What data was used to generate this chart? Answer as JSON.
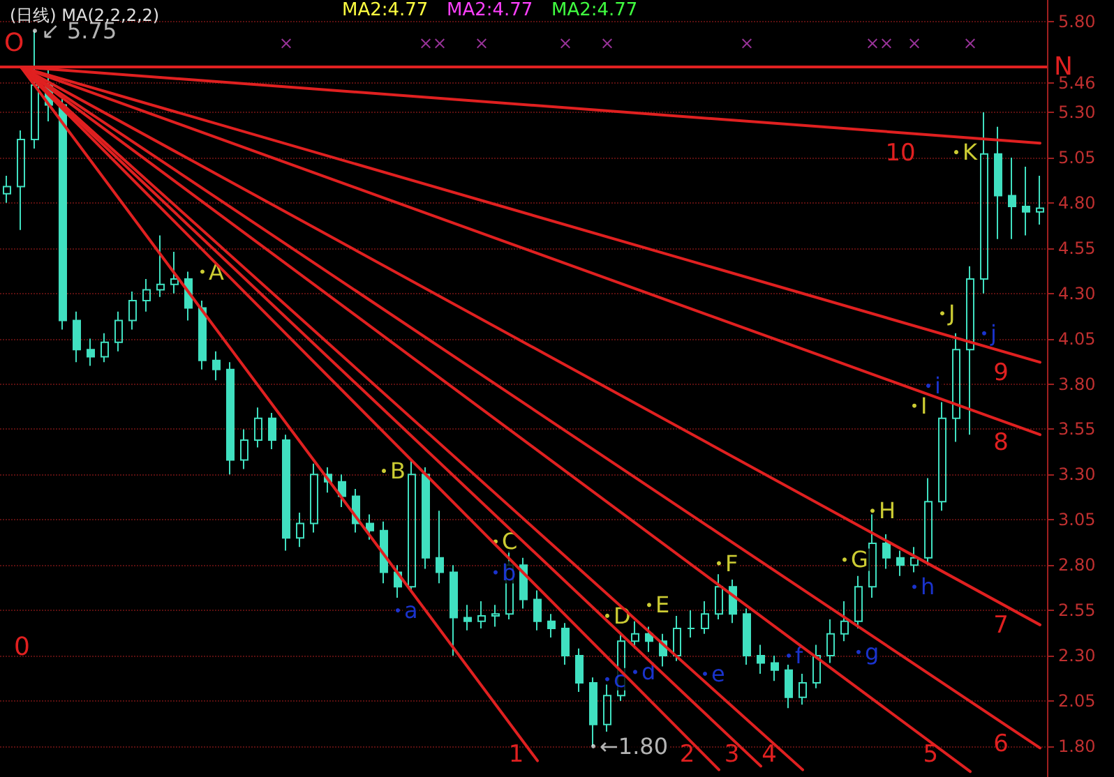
{
  "chart_data": {
    "type": "candlestick",
    "title": "(日线) MA(2,2,2,2)",
    "categories": [
      null,
      null,
      null,
      null,
      null,
      null,
      null,
      null,
      null,
      null,
      null,
      null,
      null,
      null,
      null,
      null,
      null,
      null,
      null,
      null,
      null,
      null,
      null,
      null,
      null,
      null,
      null,
      null,
      null,
      null,
      null,
      null,
      null,
      null,
      null,
      null,
      null,
      null,
      null,
      null,
      null,
      null,
      null,
      null,
      null,
      null,
      null,
      null,
      null,
      null,
      null,
      null,
      null,
      null,
      null,
      null,
      null,
      null,
      null,
      null,
      null,
      null,
      null,
      null,
      null,
      null,
      null,
      null,
      null,
      null,
      null,
      null,
      null,
      null,
      null
    ],
    "ylim": [
      1.63,
      5.92
    ],
    "yticks": [
      {
        "value": 1.8,
        "label": "1.80"
      },
      2.05,
      {
        "value": 2.3,
        "label": "2.30"
      },
      2.55,
      {
        "value": 2.8,
        "label": "2.80"
      },
      3.05,
      {
        "value": 3.3,
        "label": "3.30"
      },
      3.55,
      {
        "value": 3.8,
        "label": "3.80"
      },
      4.05,
      {
        "value": 4.3,
        "label": "4.30"
      },
      4.55,
      {
        "value": 4.8,
        "label": "4.80"
      },
      5.05,
      {
        "value": 5.3,
        "label": "5.30"
      },
      5.46,
      {
        "value": 5.8,
        "label": "5.80"
      }
    ],
    "tick_labels": "y",
    "grid": "y",
    "series": [
      {
        "type": "candlestick",
        "color": "#40e0c0",
        "ohlc": [
          [
            4.85,
            4.95,
            4.8,
            4.89
          ],
          [
            4.89,
            5.2,
            4.65,
            5.15
          ],
          [
            5.15,
            5.75,
            5.1,
            5.45
          ],
          [
            5.45,
            5.55,
            5.25,
            5.34
          ],
          [
            5.34,
            5.38,
            4.1,
            4.15
          ],
          [
            4.15,
            4.2,
            3.92,
            3.99
          ],
          [
            3.99,
            4.05,
            3.9,
            3.95
          ],
          [
            3.95,
            4.08,
            3.92,
            4.03
          ],
          [
            4.03,
            4.2,
            3.98,
            4.15
          ],
          [
            4.15,
            4.31,
            4.1,
            4.26
          ],
          [
            4.26,
            4.38,
            4.2,
            4.32
          ],
          [
            4.32,
            4.62,
            4.28,
            4.35
          ],
          [
            4.35,
            4.53,
            4.3,
            4.38
          ],
          [
            4.38,
            4.42,
            4.15,
            4.22
          ],
          [
            4.22,
            4.26,
            3.88,
            3.93
          ],
          [
            3.93,
            3.98,
            3.82,
            3.88
          ],
          [
            3.88,
            3.92,
            3.3,
            3.38
          ],
          [
            3.38,
            3.55,
            3.33,
            3.49
          ],
          [
            3.49,
            3.67,
            3.45,
            3.61
          ],
          [
            3.61,
            3.64,
            3.44,
            3.49
          ],
          [
            3.49,
            3.52,
            2.88,
            2.95
          ],
          [
            2.95,
            3.09,
            2.9,
            3.03
          ],
          [
            3.03,
            3.36,
            2.98,
            3.3
          ],
          [
            3.3,
            3.34,
            3.2,
            3.26
          ],
          [
            3.26,
            3.3,
            3.12,
            3.18
          ],
          [
            3.18,
            3.22,
            2.98,
            3.03
          ],
          [
            3.03,
            3.08,
            2.94,
            2.99
          ],
          [
            2.99,
            3.04,
            2.7,
            2.76
          ],
          [
            2.76,
            2.8,
            2.62,
            2.68
          ],
          [
            2.68,
            3.38,
            2.65,
            3.3
          ],
          [
            3.3,
            3.34,
            2.78,
            2.84
          ],
          [
            2.84,
            3.1,
            2.7,
            2.76
          ],
          [
            2.76,
            2.8,
            2.3,
            2.51
          ],
          [
            2.51,
            2.58,
            2.44,
            2.49
          ],
          [
            2.49,
            2.6,
            2.45,
            2.52
          ],
          [
            2.52,
            2.58,
            2.46,
            2.53
          ],
          [
            2.53,
            2.88,
            2.5,
            2.8
          ],
          [
            2.8,
            2.84,
            2.56,
            2.61
          ],
          [
            2.61,
            2.66,
            2.44,
            2.49
          ],
          [
            2.49,
            2.53,
            2.4,
            2.45
          ],
          [
            2.45,
            2.48,
            2.25,
            2.3
          ],
          [
            2.3,
            2.34,
            2.1,
            2.15
          ],
          [
            2.15,
            2.18,
            1.8,
            1.92
          ],
          [
            1.92,
            2.14,
            1.88,
            2.08
          ],
          [
            2.08,
            2.43,
            2.05,
            2.38
          ],
          [
            2.38,
            2.49,
            2.34,
            2.42
          ],
          [
            2.42,
            2.46,
            2.32,
            2.38
          ],
          [
            2.38,
            2.42,
            2.24,
            2.3
          ],
          [
            2.3,
            2.52,
            2.27,
            2.45
          ],
          [
            2.45,
            2.55,
            2.4,
            2.45
          ],
          [
            2.45,
            2.6,
            2.42,
            2.53
          ],
          [
            2.53,
            2.75,
            2.5,
            2.68
          ],
          [
            2.68,
            2.72,
            2.48,
            2.53
          ],
          [
            2.53,
            2.56,
            2.25,
            2.3
          ],
          [
            2.3,
            2.36,
            2.2,
            2.26
          ],
          [
            2.26,
            2.3,
            2.16,
            2.22
          ],
          [
            2.22,
            2.25,
            2.01,
            2.07
          ],
          [
            2.07,
            2.2,
            2.03,
            2.15
          ],
          [
            2.15,
            2.36,
            2.12,
            2.3
          ],
          [
            2.3,
            2.5,
            2.26,
            2.42
          ],
          [
            2.42,
            2.6,
            2.38,
            2.49
          ],
          [
            2.49,
            2.74,
            2.45,
            2.68
          ],
          [
            2.68,
            3.08,
            2.62,
            2.92
          ],
          [
            2.92,
            2.97,
            2.78,
            2.84
          ],
          [
            2.84,
            2.88,
            2.74,
            2.8
          ],
          [
            2.8,
            2.9,
            2.76,
            2.84
          ],
          [
            2.84,
            3.28,
            2.8,
            3.15
          ],
          [
            3.15,
            3.7,
            3.1,
            3.61
          ],
          [
            3.61,
            4.08,
            3.48,
            3.99
          ],
          [
            3.99,
            4.45,
            3.52,
            4.38
          ],
          [
            4.38,
            5.3,
            4.3,
            5.07
          ],
          [
            5.07,
            5.22,
            4.6,
            4.84
          ],
          [
            4.84,
            5.05,
            4.6,
            4.78
          ],
          [
            4.78,
            5.0,
            4.62,
            4.75
          ],
          [
            4.75,
            4.95,
            4.68,
            4.77
          ]
        ]
      },
      {
        "type": "line",
        "name": "1",
        "color": "#e02020",
        "values": [
          null,
          5.55,
          null,
          null,
          null,
          null,
          null,
          null,
          null,
          null,
          null,
          null,
          null,
          null,
          null,
          null,
          null,
          null,
          null,
          null,
          null,
          null,
          null,
          null,
          null,
          null,
          null,
          null,
          null,
          null,
          null,
          null,
          null,
          null,
          null,
          null,
          null,
          null,
          1.72,
          null,
          null,
          null,
          null,
          null,
          null,
          null,
          null,
          null,
          null,
          null,
          null,
          null,
          null,
          null,
          null,
          null,
          null,
          null,
          null,
          null,
          null,
          null,
          null,
          null,
          null,
          null,
          null,
          null,
          null,
          null,
          null,
          null,
          null,
          null,
          null
        ]
      },
      {
        "type": "line",
        "name": "2",
        "color": "#e02020",
        "values": [
          null,
          5.55,
          null,
          null,
          null,
          null,
          null,
          null,
          null,
          null,
          null,
          null,
          null,
          null,
          null,
          null,
          null,
          null,
          null,
          null,
          null,
          null,
          null,
          null,
          null,
          null,
          null,
          null,
          null,
          null,
          null,
          null,
          null,
          null,
          null,
          null,
          null,
          null,
          null,
          null,
          null,
          null,
          null,
          null,
          null,
          null,
          null,
          null,
          null,
          null,
          null,
          1.67,
          null,
          null,
          null,
          null,
          null,
          null,
          null,
          null,
          null,
          null,
          null,
          null,
          null,
          null,
          null,
          null,
          null,
          null,
          null,
          null,
          null,
          null,
          null
        ]
      },
      {
        "type": "line",
        "name": "3",
        "color": "#e02020",
        "values": [
          null,
          5.55,
          null,
          null,
          null,
          null,
          null,
          null,
          null,
          null,
          null,
          null,
          null,
          null,
          null,
          null,
          null,
          null,
          null,
          null,
          null,
          null,
          null,
          null,
          null,
          null,
          null,
          null,
          null,
          null,
          null,
          null,
          null,
          null,
          null,
          null,
          null,
          null,
          null,
          null,
          null,
          null,
          null,
          null,
          null,
          null,
          null,
          null,
          null,
          null,
          null,
          null,
          null,
          null,
          1.69,
          null,
          null,
          null,
          null,
          null,
          null,
          null,
          null,
          null,
          null,
          null,
          null,
          null,
          null,
          null,
          null,
          null,
          null,
          null,
          null
        ]
      },
      {
        "type": "line",
        "name": "4",
        "color": "#e02020",
        "values": [
          null,
          5.55,
          null,
          null,
          null,
          null,
          null,
          null,
          null,
          null,
          null,
          null,
          null,
          null,
          null,
          null,
          null,
          null,
          null,
          null,
          null,
          null,
          null,
          null,
          null,
          null,
          null,
          null,
          null,
          null,
          null,
          null,
          null,
          null,
          null,
          null,
          null,
          null,
          null,
          null,
          null,
          null,
          null,
          null,
          null,
          null,
          null,
          null,
          null,
          null,
          null,
          null,
          null,
          null,
          null,
          null,
          null,
          1.67,
          null,
          null,
          null,
          null,
          null,
          null,
          null,
          null,
          null,
          null,
          null,
          null,
          null,
          null,
          null,
          null,
          null
        ]
      },
      {
        "type": "line",
        "name": "5",
        "color": "#e02020",
        "values": [
          null,
          5.55,
          null,
          null,
          null,
          null,
          null,
          null,
          null,
          null,
          null,
          null,
          null,
          null,
          null,
          null,
          null,
          null,
          null,
          null,
          null,
          null,
          null,
          null,
          null,
          null,
          null,
          null,
          null,
          null,
          null,
          null,
          null,
          null,
          null,
          null,
          null,
          null,
          null,
          null,
          null,
          null,
          null,
          null,
          null,
          null,
          null,
          null,
          null,
          null,
          null,
          null,
          null,
          null,
          null,
          null,
          null,
          null,
          null,
          null,
          null,
          null,
          null,
          null,
          null,
          null,
          null,
          null,
          null,
          1.66,
          null,
          null,
          null,
          null,
          null
        ]
      },
      {
        "type": "line",
        "name": "6",
        "color": "#e02020",
        "values": [
          null,
          5.55,
          null,
          null,
          null,
          null,
          null,
          null,
          null,
          null,
          null,
          null,
          null,
          null,
          null,
          null,
          null,
          null,
          null,
          null,
          null,
          null,
          null,
          null,
          null,
          null,
          null,
          null,
          null,
          null,
          null,
          null,
          null,
          null,
          null,
          null,
          null,
          null,
          null,
          null,
          null,
          null,
          null,
          null,
          null,
          null,
          null,
          null,
          null,
          null,
          null,
          null,
          null,
          null,
          null,
          null,
          null,
          null,
          null,
          null,
          null,
          null,
          null,
          null,
          null,
          null,
          null,
          null,
          null,
          null,
          null,
          null,
          null,
          null,
          1.79
        ]
      },
      {
        "type": "line",
        "name": "7",
        "color": "#e02020",
        "values": [
          null,
          5.55,
          null,
          null,
          null,
          null,
          null,
          null,
          null,
          null,
          null,
          null,
          null,
          null,
          null,
          null,
          null,
          null,
          null,
          null,
          null,
          null,
          null,
          null,
          null,
          null,
          null,
          null,
          null,
          null,
          null,
          null,
          null,
          null,
          null,
          null,
          null,
          null,
          null,
          null,
          null,
          null,
          null,
          null,
          null,
          null,
          null,
          null,
          null,
          null,
          null,
          null,
          null,
          null,
          null,
          null,
          null,
          null,
          null,
          null,
          null,
          null,
          null,
          null,
          null,
          null,
          null,
          null,
          null,
          null,
          null,
          null,
          null,
          null,
          2.47
        ]
      },
      {
        "type": "line",
        "name": "8",
        "color": "#e02020",
        "values": [
          null,
          5.55,
          null,
          null,
          null,
          null,
          null,
          null,
          null,
          null,
          null,
          null,
          null,
          null,
          null,
          null,
          null,
          null,
          null,
          null,
          null,
          null,
          null,
          null,
          null,
          null,
          null,
          null,
          null,
          null,
          null,
          null,
          null,
          null,
          null,
          null,
          null,
          null,
          null,
          null,
          null,
          null,
          null,
          null,
          null,
          null,
          null,
          null,
          null,
          null,
          null,
          null,
          null,
          null,
          null,
          null,
          null,
          null,
          null,
          null,
          null,
          null,
          null,
          null,
          null,
          null,
          null,
          null,
          null,
          null,
          null,
          null,
          null,
          null,
          3.52
        ]
      },
      {
        "type": "line",
        "name": "9",
        "color": "#e02020",
        "values": [
          null,
          5.55,
          null,
          null,
          null,
          null,
          null,
          null,
          null,
          null,
          null,
          null,
          null,
          null,
          null,
          null,
          null,
          null,
          null,
          null,
          null,
          null,
          null,
          null,
          null,
          null,
          null,
          null,
          null,
          null,
          null,
          null,
          null,
          null,
          null,
          null,
          null,
          null,
          null,
          null,
          null,
          null,
          null,
          null,
          null,
          null,
          null,
          null,
          null,
          null,
          null,
          null,
          null,
          null,
          null,
          null,
          null,
          null,
          null,
          null,
          null,
          null,
          null,
          null,
          null,
          null,
          null,
          null,
          null,
          null,
          null,
          null,
          null,
          null,
          3.92
        ]
      },
      {
        "type": "line",
        "name": "10",
        "color": "#e02020",
        "values": [
          null,
          5.55,
          null,
          null,
          null,
          null,
          null,
          null,
          null,
          null,
          null,
          null,
          null,
          null,
          null,
          null,
          null,
          null,
          null,
          null,
          null,
          null,
          null,
          null,
          null,
          null,
          null,
          null,
          null,
          null,
          null,
          null,
          null,
          null,
          null,
          null,
          null,
          null,
          null,
          null,
          null,
          null,
          null,
          null,
          null,
          null,
          null,
          null,
          null,
          null,
          null,
          null,
          null,
          null,
          null,
          null,
          null,
          null,
          null,
          null,
          null,
          null,
          null,
          null,
          null,
          null,
          null,
          null,
          null,
          null,
          null,
          null,
          null,
          null,
          5.13
        ]
      },
      {
        "type": "scatter",
        "color": "#c040c0",
        "marker": "cross",
        "values": [
          null,
          null,
          null,
          null,
          null,
          null,
          null,
          null,
          null,
          null,
          null,
          null,
          null,
          null,
          null,
          null,
          null,
          null,
          null,
          null,
          5.68,
          null,
          null,
          null,
          null,
          null,
          null,
          null,
          null,
          null,
          5.68,
          5.68,
          null,
          null,
          5.68,
          null,
          null,
          null,
          null,
          null,
          5.68,
          null,
          null,
          5.68,
          null,
          null,
          null,
          null,
          null,
          null,
          null,
          null,
          null,
          5.68,
          null,
          null,
          null,
          null,
          null,
          null,
          null,
          null,
          5.68,
          5.68,
          null,
          5.68,
          null,
          null,
          null,
          5.68,
          null,
          null,
          null,
          null,
          null
        ]
      },
      {
        "type": "scatter",
        "color": "#ffff40",
        "marker": "circle",
        "values": [
          null,
          null,
          null,
          null,
          null,
          null,
          null,
          null,
          null,
          null,
          null,
          null,
          null,
          null,
          4.42,
          null,
          null,
          null,
          null,
          null,
          null,
          null,
          null,
          null,
          null,
          null,
          null,
          3.32,
          null,
          null,
          null,
          null,
          null,
          null,
          null,
          2.93,
          null,
          null,
          null,
          null,
          null,
          null,
          null,
          2.52,
          null,
          null,
          2.58,
          null,
          null,
          null,
          null,
          2.81,
          null,
          null,
          null,
          null,
          null,
          null,
          null,
          null,
          2.83,
          null,
          3.1,
          null,
          null,
          3.68,
          null,
          4.19,
          5.08,
          null,
          null,
          null,
          null,
          null,
          null
        ],
        "value_labels": [
          null,
          null,
          null,
          null,
          null,
          null,
          null,
          null,
          null,
          null,
          null,
          null,
          null,
          null,
          "A",
          null,
          null,
          null,
          null,
          null,
          null,
          null,
          null,
          null,
          null,
          null,
          null,
          "B",
          null,
          null,
          null,
          null,
          null,
          null,
          null,
          "C",
          null,
          null,
          null,
          null,
          null,
          null,
          null,
          "D",
          null,
          null,
          "E",
          null,
          null,
          null,
          null,
          "F",
          null,
          null,
          null,
          null,
          null,
          null,
          null,
          null,
          "G",
          null,
          "H",
          null,
          null,
          "I",
          null,
          "J",
          "K",
          null,
          null,
          null,
          null,
          null,
          null
        ]
      },
      {
        "type": "scatter",
        "color": "#2040ff",
        "marker": "circle",
        "values": [
          null,
          null,
          null,
          null,
          null,
          null,
          null,
          null,
          null,
          null,
          null,
          null,
          null,
          null,
          null,
          null,
          null,
          null,
          null,
          null,
          null,
          null,
          null,
          null,
          null,
          null,
          null,
          null,
          2.55,
          null,
          null,
          null,
          null,
          null,
          null,
          2.76,
          null,
          null,
          null,
          null,
          null,
          null,
          null,
          2.17,
          null,
          2.21,
          null,
          null,
          null,
          null,
          2.2,
          null,
          null,
          null,
          null,
          null,
          2.3,
          null,
          null,
          null,
          null,
          2.32,
          null,
          null,
          null,
          2.68,
          3.79,
          null,
          null,
          null,
          4.08,
          null,
          null,
          null,
          null
        ],
        "value_labels": [
          null,
          null,
          null,
          null,
          null,
          null,
          null,
          null,
          null,
          null,
          null,
          null,
          null,
          null,
          null,
          null,
          null,
          null,
          null,
          null,
          null,
          null,
          null,
          null,
          null,
          null,
          null,
          null,
          "a",
          null,
          null,
          null,
          null,
          null,
          null,
          "b",
          null,
          null,
          null,
          null,
          null,
          null,
          null,
          "c",
          null,
          "d",
          null,
          null,
          null,
          null,
          "e",
          null,
          null,
          null,
          null,
          null,
          "f",
          null,
          null,
          null,
          null,
          "g",
          null,
          null,
          null,
          "h",
          "i",
          null,
          null,
          null,
          "j",
          null,
          null,
          null,
          null
        ]
      },
      {
        "type": "scatter",
        "color": "#e0e0e0",
        "marker": "circle",
        "values": [
          null,
          null,
          5.75,
          null,
          null,
          null,
          null,
          null,
          null,
          null,
          null,
          null,
          null,
          null,
          null,
          null,
          null,
          null,
          null,
          null,
          null,
          null,
          null,
          null,
          null,
          null,
          null,
          null,
          null,
          null,
          null,
          null,
          null,
          null,
          null,
          null,
          null,
          null,
          null,
          null,
          null,
          null,
          1.8,
          null,
          null,
          null,
          null,
          null,
          null,
          null,
          null,
          null,
          null,
          null,
          null,
          null,
          null,
          null,
          null,
          null,
          null,
          null,
          null,
          null,
          null,
          null,
          null,
          null,
          null,
          null,
          null,
          null,
          null,
          null,
          null
        ],
        "value_labels": [
          null,
          null,
          "↙ 5.75",
          null,
          null,
          null,
          null,
          null,
          null,
          null,
          null,
          null,
          null,
          null,
          null,
          null,
          null,
          null,
          null,
          null,
          null,
          null,
          null,
          null,
          null,
          null,
          null,
          null,
          null,
          null,
          null,
          null,
          null,
          null,
          null,
          null,
          null,
          null,
          null,
          null,
          null,
          null,
          "←1.80",
          null,
          null,
          null,
          null,
          null,
          null,
          null,
          null,
          null,
          null,
          null,
          null,
          null,
          null,
          null,
          null,
          null,
          null,
          null,
          null,
          null,
          null,
          null,
          null,
          null,
          null,
          null,
          null,
          null,
          null,
          null,
          null
        ]
      }
    ],
    "ref_lines": [
      {
        "axis": "y",
        "value": 5.55,
        "label": "N",
        "color": "#e02020"
      }
    ],
    "annotations": [
      "MA2:4.77",
      "MA2:4.77",
      "MA2:4.77",
      "O",
      "0"
    ]
  }
}
